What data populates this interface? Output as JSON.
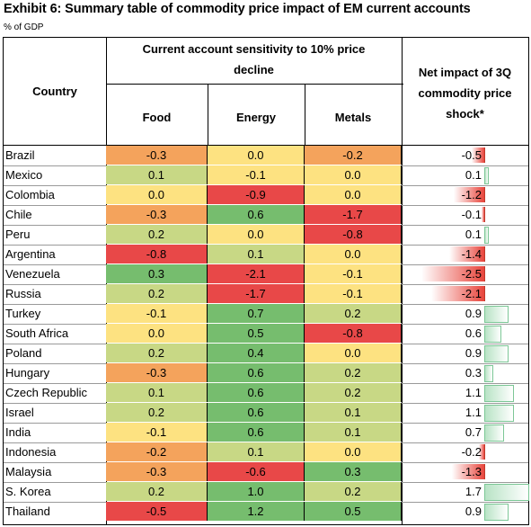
{
  "title": "Exhibit 6: Summary table of commodity price impact of EM current accounts",
  "unit": "% of GDP",
  "headers": {
    "country": "Country",
    "sensitivity_group_line1": "Current account sensitivity to 10% price",
    "sensitivity_group_line2": "decline",
    "food": "Food",
    "energy": "Energy",
    "metals": "Metals",
    "net_line1": "Net impact of 3Q",
    "net_line2": "commodity price",
    "net_line3": "shock*"
  },
  "colors": {
    "red": "#e84848",
    "orange": "#f4a35c",
    "yellow": "#fde281",
    "lightgreen": "#c8d885",
    "green": "#76bd6e",
    "neg_bar": "#e8453c",
    "pos_bar": "#b8e3c5"
  },
  "rows": [
    {
      "country": "Brazil",
      "food": "-0.3",
      "energy": "0.0",
      "metals": "-0.2",
      "net": "-0.5",
      "net_value": -0.5
    },
    {
      "country": "Mexico",
      "food": "0.1",
      "energy": "-0.1",
      "metals": "0.0",
      "net": "0.1",
      "net_value": 0.1
    },
    {
      "country": "Colombia",
      "food": "0.0",
      "energy": "-0.9",
      "metals": "0.0",
      "net": "-1.2",
      "net_value": -1.2
    },
    {
      "country": "Chile",
      "food": "-0.3",
      "energy": "0.6",
      "metals": "-1.7",
      "net": "-0.1",
      "net_value": -0.1
    },
    {
      "country": "Peru",
      "food": "0.2",
      "energy": "0.0",
      "metals": "-0.8",
      "net": "0.1",
      "net_value": 0.1
    },
    {
      "country": "Argentina",
      "food": "-0.8",
      "energy": "0.1",
      "metals": "0.0",
      "net": "-1.4",
      "net_value": -1.4
    },
    {
      "country": "Venezuela",
      "food": "0.3",
      "energy": "-2.1",
      "metals": "-0.1",
      "net": "-2.5",
      "net_value": -2.5
    },
    {
      "country": "Russia",
      "food": "0.2",
      "energy": "-1.7",
      "metals": "-0.1",
      "net": "-2.1",
      "net_value": -2.1
    },
    {
      "country": "Turkey",
      "food": "-0.1",
      "energy": "0.7",
      "metals": "0.2",
      "net": "0.9",
      "net_value": 0.9
    },
    {
      "country": "South Africa",
      "food": "0.0",
      "energy": "0.5",
      "metals": "-0.8",
      "net": "0.6",
      "net_value": 0.6
    },
    {
      "country": "Poland",
      "food": "0.2",
      "energy": "0.4",
      "metals": "0.0",
      "net": "0.9",
      "net_value": 0.9
    },
    {
      "country": "Hungary",
      "food": "-0.3",
      "energy": "0.6",
      "metals": "0.2",
      "net": "0.3",
      "net_value": 0.3
    },
    {
      "country": "Czech Republic",
      "food": "0.1",
      "energy": "0.6",
      "metals": "0.2",
      "net": "1.1",
      "net_value": 1.1
    },
    {
      "country": "Israel",
      "food": "0.2",
      "energy": "0.6",
      "metals": "0.1",
      "net": "1.1",
      "net_value": 1.1
    },
    {
      "country": "India",
      "food": "-0.1",
      "energy": "0.6",
      "metals": "0.1",
      "net": "0.7",
      "net_value": 0.7
    },
    {
      "country": "Indonesia",
      "food": "-0.2",
      "energy": "0.1",
      "metals": "0.0",
      "net": "-0.2",
      "net_value": -0.2
    },
    {
      "country": "Malaysia",
      "food": "-0.3",
      "energy": "-0.6",
      "metals": "0.3",
      "net": "-1.3",
      "net_value": -1.3
    },
    {
      "country": "S. Korea",
      "food": "0.2",
      "energy": "1.0",
      "metals": "0.2",
      "net": "1.7",
      "net_value": 1.7
    },
    {
      "country": "Thailand",
      "food": "-0.5",
      "energy": "1.2",
      "metals": "0.5",
      "net": "0.9",
      "net_value": 0.9
    }
  ]
}
